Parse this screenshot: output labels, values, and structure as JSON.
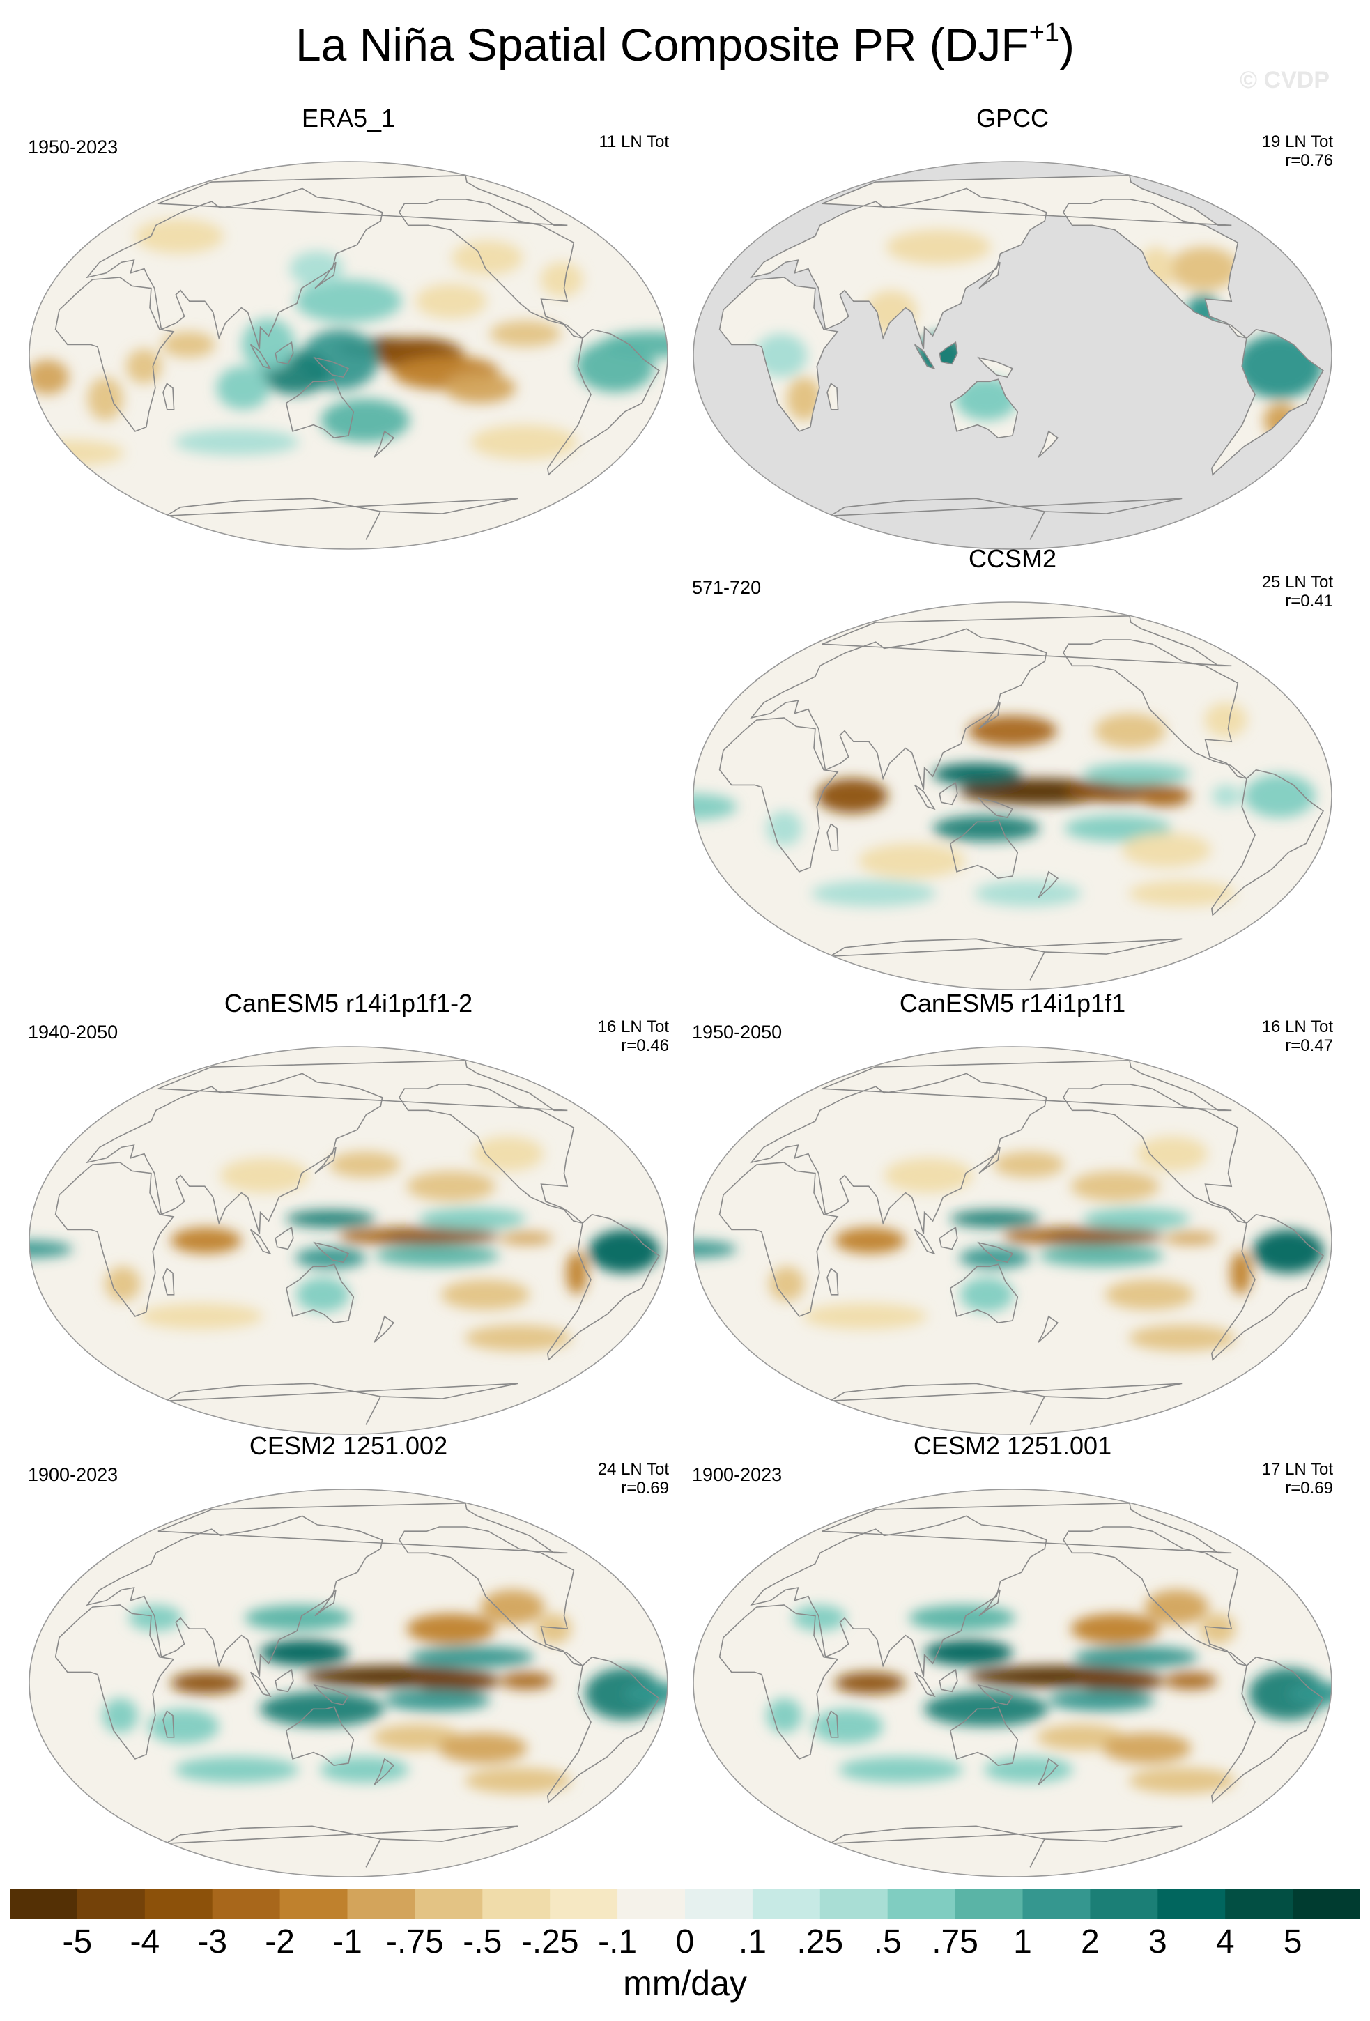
{
  "figure": {
    "title": "La Niña Spatial Composite PR (DJF",
    "title_sup": "+1",
    "title_close": ")",
    "watermark": "© CVDP"
  },
  "panels": [
    {
      "id": "era5",
      "title": "ERA5_1",
      "years": "1950-2023",
      "count": "11 LN Tot",
      "corr": "",
      "col": 0,
      "row": 0,
      "land_only": false,
      "pattern": "obs"
    },
    {
      "id": "gpcc",
      "title": "GPCC",
      "years": "",
      "count": "19 LN Tot",
      "corr": "r=0.76",
      "col": 1,
      "row": 0,
      "land_only": true,
      "pattern": "obs"
    },
    {
      "id": "ccsm2",
      "title": "CCSM2",
      "years": "571-720",
      "count": "25 LN Tot",
      "corr": "r=0.41",
      "col": 1,
      "row": 1,
      "land_only": false,
      "pattern": "ccsm"
    },
    {
      "id": "canesm5b",
      "title": "CanESM5 r14i1p1f1-2",
      "years": "1940-2050",
      "count": "16 LN Tot",
      "corr": "r=0.46",
      "col": 0,
      "row": 2,
      "land_only": false,
      "pattern": "canesm"
    },
    {
      "id": "canesm5a",
      "title": "CanESM5 r14i1p1f1",
      "years": "1950-2050",
      "count": "16 LN Tot",
      "corr": "r=0.47",
      "col": 1,
      "row": 2,
      "land_only": false,
      "pattern": "canesm"
    },
    {
      "id": "cesm2b",
      "title": "CESM2 1251.002",
      "years": "1900-2023",
      "count": "24 LN Tot",
      "corr": "r=0.69",
      "col": 0,
      "row": 3,
      "land_only": false,
      "pattern": "cesm"
    },
    {
      "id": "cesm2a",
      "title": "CESM2 1251.001",
      "years": "1900-2023",
      "count": "17 LN Tot",
      "corr": "r=0.69",
      "col": 1,
      "row": 3,
      "land_only": false,
      "pattern": "cesm"
    }
  ],
  "colorbar": {
    "unit": "mm/day",
    "labels": [
      "-5",
      "-4",
      "-3",
      "-2",
      "-1",
      "-.75",
      "-.5",
      "-.25",
      "-.1",
      "0",
      ".1",
      ".25",
      ".5",
      ".75",
      "1",
      "2",
      "3",
      "4",
      "5"
    ],
    "colors": [
      "#543005",
      "#744209",
      "#8c510a",
      "#a8671b",
      "#bf812d",
      "#d3a45b",
      "#e3c384",
      "#f0dcaa",
      "#f6e8c3",
      "#f5f2ea",
      "#e6f1ef",
      "#c7eae5",
      "#a9ded5",
      "#80cdc1",
      "#5ab4a6",
      "#35978f",
      "#1b7f76",
      "#01665e",
      "#024f43",
      "#003c30"
    ]
  },
  "map_style": {
    "ocean_missing": "#dedede",
    "neutral": "#f5f2ea",
    "coast": "#8a8a8a",
    "grid": "#c8c8c8"
  }
}
